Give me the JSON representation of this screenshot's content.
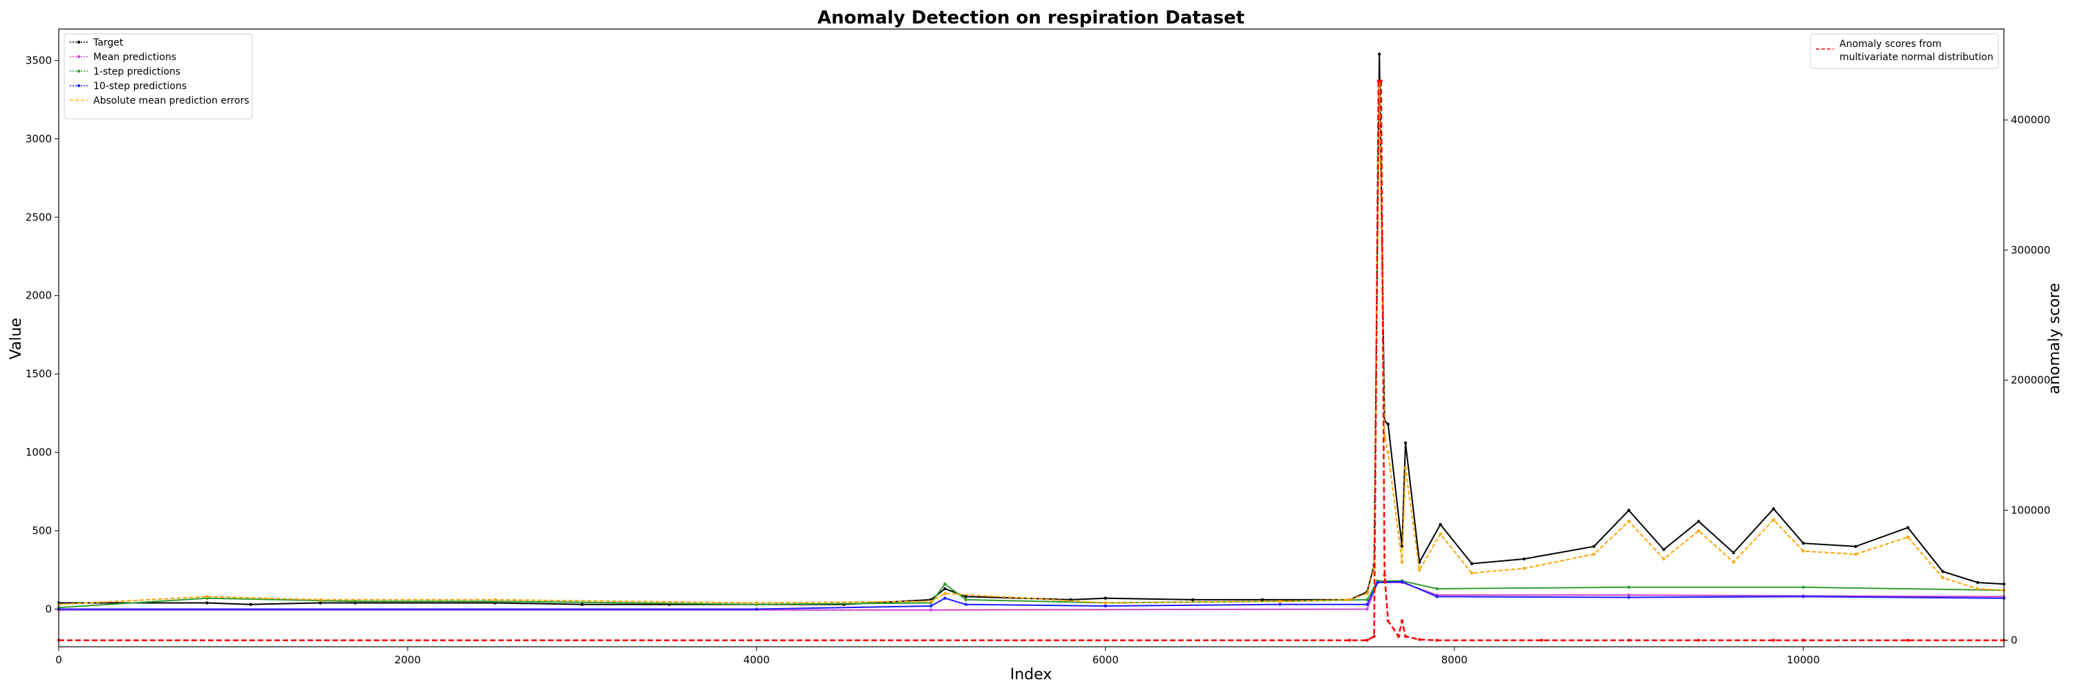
{
  "chart_data": {
    "type": "line",
    "title": "Anomaly Detection on respiration Dataset",
    "xlabel": "Index",
    "ylabel": "Value",
    "y2label": "anomaly score",
    "xlim": [
      0,
      11150
    ],
    "ylim": [
      -240,
      3700
    ],
    "y2lim": [
      -5000,
      470000
    ],
    "x_ticks": [
      0,
      2000,
      4000,
      6000,
      8000,
      10000
    ],
    "y_ticks": [
      0,
      500,
      1000,
      1500,
      2000,
      2500,
      3000,
      3500
    ],
    "y2_ticks": [
      0,
      100000,
      200000,
      300000,
      400000
    ],
    "grid": false,
    "legend_left": {
      "position": "top-left",
      "entries": [
        {
          "label": "Target",
          "color": "#000000",
          "style": "dotted-marker"
        },
        {
          "label": "Mean predictions",
          "color": "#cc44cc",
          "style": "dotted-marker"
        },
        {
          "label": "1-step predictions",
          "color": "#2e9e2e",
          "style": "dotted-marker"
        },
        {
          "label": "10-step predictions",
          "color": "#1a1aff",
          "style": "dotted-marker"
        },
        {
          "label": "Absolute mean prediction errors",
          "color": "#ffa500",
          "style": "dashed"
        }
      ]
    },
    "legend_right": {
      "position": "top-right",
      "entries": [
        {
          "label": "Anomaly scores from",
          "color": "#ff0000",
          "style": "dashed"
        },
        {
          "label": "multivariate normal distribution",
          "color": "",
          "style": "continuation"
        }
      ]
    },
    "series": [
      {
        "name": "Target",
        "color": "#000000",
        "axis": "left",
        "x": [
          0,
          850,
          1100,
          1500,
          1700,
          2500,
          3000,
          3500,
          4000,
          4500,
          5000,
          5080,
          5200,
          5800,
          6000,
          6500,
          6900,
          7400,
          7500,
          7540,
          7570,
          7600,
          7620,
          7700,
          7720,
          7800,
          7920,
          8100,
          8400,
          8800,
          9000,
          9200,
          9400,
          9600,
          9830,
          10000,
          10300,
          10600,
          10800,
          11000,
          11150
        ],
        "values": [
          40,
          40,
          30,
          40,
          40,
          40,
          30,
          30,
          30,
          30,
          60,
          130,
          80,
          60,
          70,
          60,
          60,
          60,
          110,
          280,
          3540,
          1200,
          1180,
          400,
          1060,
          300,
          540,
          290,
          320,
          400,
          630,
          380,
          560,
          360,
          640,
          420,
          400,
          520,
          240,
          170,
          160
        ]
      },
      {
        "name": "Mean predictions",
        "color": "#cc44cc",
        "axis": "left",
        "x": [
          0,
          5000,
          7500,
          7560,
          7700,
          7900,
          9000,
          10000,
          11150
        ],
        "values": [
          -5,
          -5,
          0,
          170,
          170,
          90,
          90,
          85,
          80
        ]
      },
      {
        "name": "1-step predictions",
        "color": "#2e9e2e",
        "axis": "left",
        "x": [
          0,
          850,
          1700,
          2500,
          4000,
          5000,
          5080,
          5200,
          6000,
          7000,
          7500,
          7560,
          7700,
          7900,
          9000,
          10000,
          11150
        ],
        "values": [
          10,
          70,
          50,
          50,
          30,
          40,
          160,
          60,
          40,
          50,
          60,
          180,
          180,
          130,
          140,
          140,
          120
        ]
      },
      {
        "name": "10-step predictions",
        "color": "#1a1aff",
        "axis": "left",
        "x": [
          0,
          4000,
          5000,
          5080,
          5200,
          6000,
          7000,
          7500,
          7560,
          7700,
          7900,
          9000,
          10000,
          11150
        ],
        "values": [
          0,
          0,
          20,
          70,
          30,
          20,
          30,
          30,
          170,
          175,
          80,
          75,
          80,
          70
        ]
      },
      {
        "name": "Absolute mean prediction errors",
        "color": "#ffa500",
        "axis": "left",
        "x": [
          0,
          850,
          1500,
          2500,
          4000,
          5000,
          5080,
          6000,
          7000,
          7400,
          7500,
          7540,
          7570,
          7600,
          7620,
          7700,
          7720,
          7800,
          7920,
          8100,
          8400,
          8800,
          9000,
          9200,
          9400,
          9600,
          9830,
          10000,
          10300,
          10600,
          10800,
          11000,
          11150
        ],
        "values": [
          30,
          80,
          60,
          60,
          40,
          50,
          100,
          40,
          50,
          60,
          100,
          260,
          3350,
          1100,
          1000,
          300,
          900,
          250,
          480,
          230,
          260,
          350,
          560,
          320,
          500,
          300,
          570,
          370,
          350,
          460,
          200,
          130,
          120
        ]
      },
      {
        "name": "Anomaly scores from multivariate normal distribution",
        "color": "#ff0000",
        "axis": "right",
        "x": [
          0,
          7400,
          7500,
          7540,
          7565,
          7580,
          7600,
          7620,
          7680,
          7700,
          7720,
          7800,
          7900,
          8500,
          9000,
          9400,
          9830,
          10000,
          10600,
          11150
        ],
        "values": [
          0,
          0,
          0,
          3000,
          430000,
          430000,
          50000,
          15000,
          3000,
          15000,
          3000,
          500,
          0,
          0,
          0,
          0,
          0,
          0,
          0,
          0
        ]
      }
    ]
  }
}
